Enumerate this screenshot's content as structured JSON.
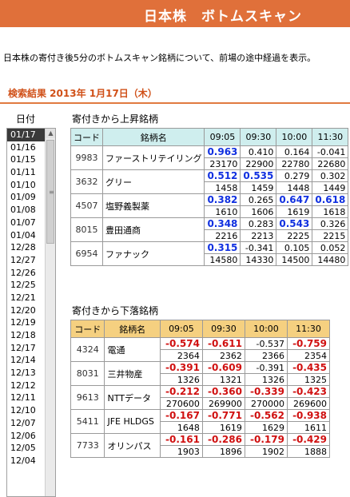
{
  "header": {
    "title": "日本株　ボトムスキャン"
  },
  "description": "日本株の寄付き後5分のボトムスキャン銘柄について、前場の途中経過を表示。",
  "result": {
    "label": "検索結果 2013年 1月17日（木）"
  },
  "date_list": {
    "label": "日付",
    "items": [
      "01/17",
      "01/16",
      "01/15",
      "01/11",
      "01/10",
      "01/09",
      "01/08",
      "01/07",
      "01/04",
      "12/28",
      "12/27",
      "12/26",
      "12/25",
      "12/21",
      "12/20",
      "12/19",
      "12/18",
      "12/17",
      "12/14",
      "12/13",
      "12/12",
      "12/11",
      "12/10",
      "12/07",
      "12/06",
      "12/05",
      "12/04"
    ],
    "selected": "01/17"
  },
  "rising": {
    "title": "寄付きから上昇銘柄",
    "headers": [
      "コード",
      "銘柄名",
      "09:05",
      "09:30",
      "10:00",
      "11:30"
    ],
    "rows": [
      {
        "code": "9983",
        "name": "ファーストリテイリング",
        "vals": [
          "0.963",
          "0.410",
          "0.164",
          "-0.041"
        ],
        "colors": [
          "blue",
          "normal",
          "normal",
          "normal"
        ],
        "vols": [
          "23170",
          "22900",
          "22780",
          "22680"
        ]
      },
      {
        "code": "3632",
        "name": "グリー",
        "vals": [
          "0.512",
          "0.535",
          "0.279",
          "0.302"
        ],
        "colors": [
          "blue",
          "blue",
          "normal",
          "normal"
        ],
        "vols": [
          "1458",
          "1459",
          "1448",
          "1449"
        ]
      },
      {
        "code": "4507",
        "name": "塩野義製薬",
        "vals": [
          "0.382",
          "0.265",
          "0.647",
          "0.618"
        ],
        "colors": [
          "blue",
          "normal",
          "blue",
          "blue"
        ],
        "vols": [
          "1610",
          "1606",
          "1619",
          "1618"
        ]
      },
      {
        "code": "8015",
        "name": "豊田通商",
        "vals": [
          "0.348",
          "0.283",
          "0.543",
          "0.326"
        ],
        "colors": [
          "blue",
          "normal",
          "blue",
          "normal"
        ],
        "vols": [
          "2216",
          "2213",
          "2225",
          "2215"
        ]
      },
      {
        "code": "6954",
        "name": "ファナック",
        "vals": [
          "0.315",
          "-0.341",
          "0.105",
          "0.052"
        ],
        "colors": [
          "blue",
          "normal",
          "normal",
          "normal"
        ],
        "vols": [
          "14580",
          "14330",
          "14500",
          "14480"
        ]
      }
    ]
  },
  "falling": {
    "title": "寄付きから下落銘柄",
    "headers": [
      "コード",
      "銘柄名",
      "09:05",
      "09:30",
      "10:00",
      "11:30"
    ],
    "rows": [
      {
        "code": "4324",
        "name": "電通",
        "vals": [
          "-0.574",
          "-0.611",
          "-0.537",
          "-0.759"
        ],
        "colors": [
          "red",
          "red",
          "normal",
          "red"
        ],
        "vols": [
          "2364",
          "2362",
          "2366",
          "2354"
        ]
      },
      {
        "code": "8031",
        "name": "三井物産",
        "vals": [
          "-0.391",
          "-0.609",
          "-0.391",
          "-0.435"
        ],
        "colors": [
          "red",
          "red",
          "normal",
          "red"
        ],
        "vols": [
          "1326",
          "1321",
          "1326",
          "1325"
        ]
      },
      {
        "code": "9613",
        "name": "NTTデータ",
        "vals": [
          "-0.212",
          "-0.360",
          "-0.339",
          "-0.423"
        ],
        "colors": [
          "red",
          "red",
          "red",
          "red"
        ],
        "vols": [
          "270600",
          "269900",
          "270000",
          "269600"
        ]
      },
      {
        "code": "5411",
        "name": "JFE HLDGS",
        "vals": [
          "-0.167",
          "-0.771",
          "-0.562",
          "-0.938"
        ],
        "colors": [
          "red",
          "red",
          "red",
          "red"
        ],
        "vols": [
          "1648",
          "1619",
          "1629",
          "1611"
        ]
      },
      {
        "code": "7733",
        "name": "オリンパス",
        "vals": [
          "-0.161",
          "-0.286",
          "-0.179",
          "-0.429"
        ],
        "colors": [
          "red",
          "red",
          "red",
          "red"
        ],
        "vols": [
          "1903",
          "1896",
          "1902",
          "1888"
        ]
      }
    ]
  }
}
